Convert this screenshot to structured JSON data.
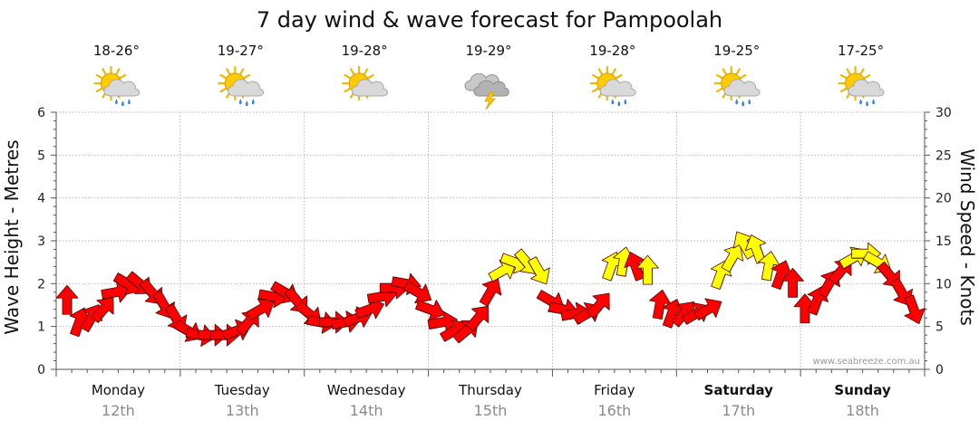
{
  "chart_data": {
    "type": "line",
    "title": "7 day wind & wave forecast for Pampoolah",
    "ylabel_left": "Wave Height - Metres",
    "ylabel_right": "Wind Speed - Knots",
    "ylim_left": [
      0,
      6
    ],
    "ylim_right": [
      0,
      30
    ],
    "yticks_left": [
      "0",
      "1",
      "2",
      "3",
      "4",
      "5",
      "6"
    ],
    "yticks_right": [
      "0",
      "5",
      "10",
      "15",
      "20",
      "25",
      "30"
    ],
    "credit": "www.seabreeze.com.au",
    "days": [
      {
        "name": "Monday",
        "date": "12th",
        "temp": "18-26°",
        "icon": "sun-cloud-rain-icon",
        "weekend": false
      },
      {
        "name": "Tuesday",
        "date": "13th",
        "temp": "19-27°",
        "icon": "sun-cloud-rain-icon",
        "weekend": false
      },
      {
        "name": "Wednesday",
        "date": "14th",
        "temp": "19-28°",
        "icon": "sun-cloud-icon",
        "weekend": false
      },
      {
        "name": "Thursday",
        "date": "15th",
        "temp": "19-29°",
        "icon": "storm-icon",
        "weekend": false
      },
      {
        "name": "Friday",
        "date": "16th",
        "temp": "19-28°",
        "icon": "sun-cloud-rain-icon",
        "weekend": false
      },
      {
        "name": "Saturday",
        "date": "17th",
        "temp": "19-25°",
        "icon": "sun-cloud-rain-icon",
        "weekend": true
      },
      {
        "name": "Sunday",
        "date": "18th",
        "temp": "17-25°",
        "icon": "sun-cloud-rain-icon",
        "weekend": true
      }
    ],
    "wind_knots": [
      9.8,
      3.2,
      4.6,
      6.3,
      9.4,
      11.6,
      11.3,
      10.5,
      8.5,
      6.1,
      3.6,
      3.8,
      3.5,
      3.7,
      3.7,
      5.6,
      7.8,
      9.9,
      10.0,
      8.6,
      6.1,
      5.6,
      5.1,
      5.3,
      6.2,
      7.6,
      8.9,
      10.4,
      10.8,
      9.4,
      7.1,
      4.7,
      4.2,
      4.4,
      5.4,
      10.3,
      14.3,
      14.4,
      13.2,
      12.6,
      7.0,
      6.1,
      5.2,
      5.6,
      7.0,
      14.2,
      12.8,
      10.5,
      12.2,
      5.8,
      5.7,
      6.1,
      6.8,
      7.2,
      12.1,
      14.8,
      16.2,
      14.8,
      12.6,
      11.4,
      10.8,
      5.3,
      5.6,
      6.8,
      11.2,
      14.8,
      14.6,
      13.2,
      11.2,
      9.0,
      5.6
    ],
    "wave_m": [
      1.6,
      1.1,
      1.2,
      1.4,
      1.8,
      2.0,
      2.0,
      1.8,
      1.5,
      1.2,
      0.9,
      0.8,
      0.8,
      0.8,
      0.9,
      1.1,
      1.4,
      1.7,
      1.8,
      1.6,
      1.3,
      1.1,
      1.1,
      1.1,
      1.2,
      1.4,
      1.7,
      1.9,
      2.0,
      1.8,
      1.4,
      1.1,
      0.9,
      0.9,
      1.2,
      1.8,
      2.3,
      2.5,
      2.5,
      2.3,
      1.6,
      1.4,
      1.3,
      1.3,
      1.5,
      2.4,
      2.5,
      2.4,
      2.3,
      1.5,
      1.3,
      1.3,
      1.3,
      1.4,
      2.2,
      2.6,
      2.9,
      2.8,
      2.4,
      2.2,
      2.0,
      1.4,
      1.6,
      2.0,
      2.3,
      2.6,
      2.7,
      2.5,
      2.2,
      1.8,
      1.4
    ],
    "wind_dir_deg": [
      0,
      20,
      30,
      40,
      80,
      120,
      130,
      140,
      150,
      150,
      120,
      100,
      90,
      90,
      70,
      40,
      60,
      100,
      120,
      140,
      130,
      100,
      90,
      80,
      70,
      70,
      80,
      90,
      100,
      120,
      110,
      80,
      60,
      50,
      40,
      30,
      60,
      110,
      140,
      150,
      120,
      100,
      80,
      60,
      40,
      20,
      10,
      340,
      0,
      10,
      20,
      40,
      60,
      60,
      20,
      30,
      330,
      340,
      10,
      20,
      0,
      0,
      20,
      30,
      40,
      60,
      90,
      120,
      140,
      150,
      160
    ],
    "legend": {
      "calm_color": "#ff0000",
      "fresh_color": "#ffff00",
      "threshold_knots": 12
    }
  }
}
